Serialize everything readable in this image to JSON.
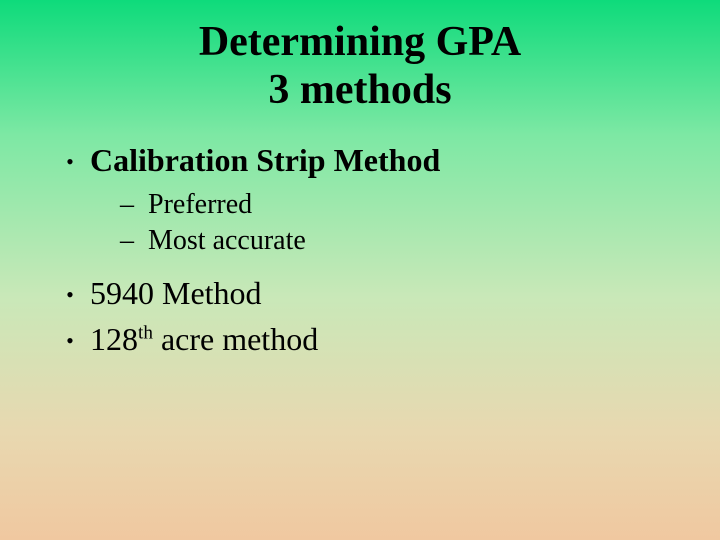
{
  "background": {
    "gradient_stops": [
      "#0edb7b",
      "#7de8a4",
      "#c9e8b8",
      "#e8d8b0",
      "#f0c8a0"
    ]
  },
  "text_color": "#000000",
  "font_family": "Times New Roman",
  "title": {
    "line1": "Determining GPA",
    "line2": "3 methods",
    "fontsize": 42,
    "weight": "bold"
  },
  "bullets": [
    {
      "text": "Calibration Strip Method",
      "bold": true,
      "sub": [
        {
          "text": "Preferred"
        },
        {
          "text": "Most accurate"
        }
      ]
    },
    {
      "text": "5940 Method",
      "bold": false,
      "sub": []
    },
    {
      "text_prefix": "128",
      "text_sup": "th",
      "text_suffix": " acre method",
      "bold": false,
      "sub": []
    }
  ],
  "fontsize_bullet1": 32,
  "fontsize_bullet2": 28
}
